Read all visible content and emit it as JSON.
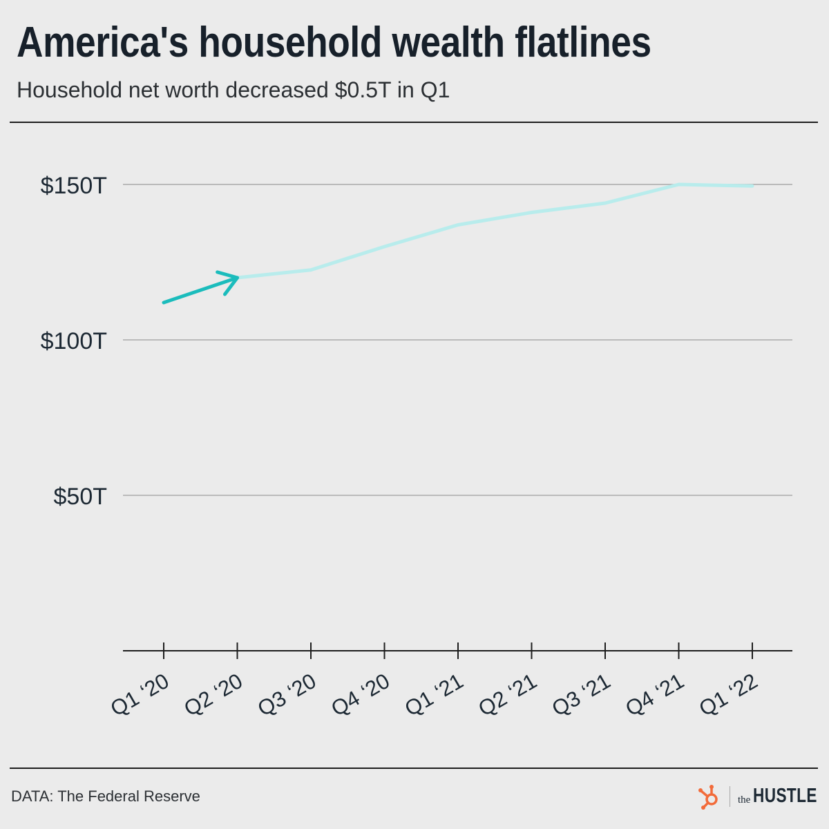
{
  "title": "America's household wealth flatlines",
  "subtitle": "Household net worth decreased $0.5T in Q1",
  "source": "DATA: The Federal Reserve",
  "logo": {
    "prefix": "the",
    "word": "HUSTLE",
    "icon": "hubspot-sprocket-icon"
  },
  "colors": {
    "background": "#ebebeb",
    "line": "#b8ecec",
    "arrow": "#1bbcbc",
    "grid": "#a9a9a9",
    "text": "#1c2833",
    "logo_icon": "#f26b3a"
  },
  "chart_data": {
    "type": "line",
    "categories": [
      "Q1 ‘20",
      "Q2 ‘20",
      "Q3 ‘20",
      "Q4 ‘20",
      "Q1 ‘21",
      "Q2 ‘21",
      "Q3 ‘21",
      "Q4 ‘21",
      "Q1 ‘22"
    ],
    "series": [
      {
        "values": [
          112,
          120,
          122.5,
          130,
          137,
          141,
          144,
          150,
          149.5
        ]
      }
    ],
    "ylim": [
      0,
      160
    ],
    "y_ticks": [
      50,
      100,
      150
    ],
    "y_tick_labels": [
      "$50T",
      "$100T",
      "$150T"
    ],
    "grid": true,
    "highlight": {
      "from_index": 0,
      "to_index": 1,
      "style": "arrow"
    }
  }
}
